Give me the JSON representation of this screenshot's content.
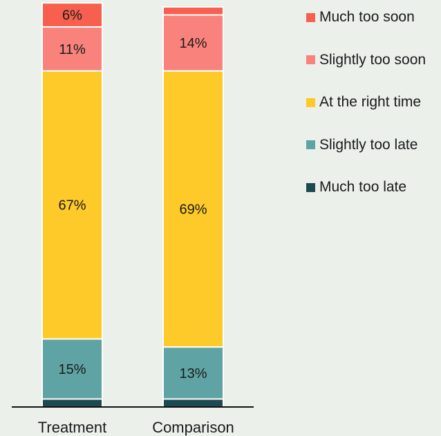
{
  "chart_data": {
    "type": "bar",
    "stacked": true,
    "orientation": "vertical",
    "categories": [
      "Treatment",
      "Comparison"
    ],
    "ylim": [
      0,
      100
    ],
    "grid": false,
    "legend_position": "right",
    "series": [
      {
        "name": "Much too late",
        "color": "#1d4a50",
        "values": [
          2,
          2
        ],
        "labels": [
          "",
          ""
        ]
      },
      {
        "name": "Slightly too late",
        "color": "#5fa3a4",
        "values": [
          15,
          13
        ],
        "labels": [
          "15%",
          "13%"
        ]
      },
      {
        "name": "At the right time",
        "color": "#fdca29",
        "values": [
          67,
          69
        ],
        "labels": [
          "67%",
          "69%"
        ]
      },
      {
        "name": "Slightly too soon",
        "color": "#f9837c",
        "values": [
          11,
          14
        ],
        "labels": [
          "11%",
          "14%"
        ]
      },
      {
        "name": "Much too soon",
        "color": "#f7604e",
        "values": [
          6,
          2
        ],
        "labels": [
          "6%",
          ""
        ]
      }
    ],
    "legend_order": [
      "Much too soon",
      "Slightly too soon",
      "At the right time",
      "Slightly too late",
      "Much too late"
    ]
  }
}
